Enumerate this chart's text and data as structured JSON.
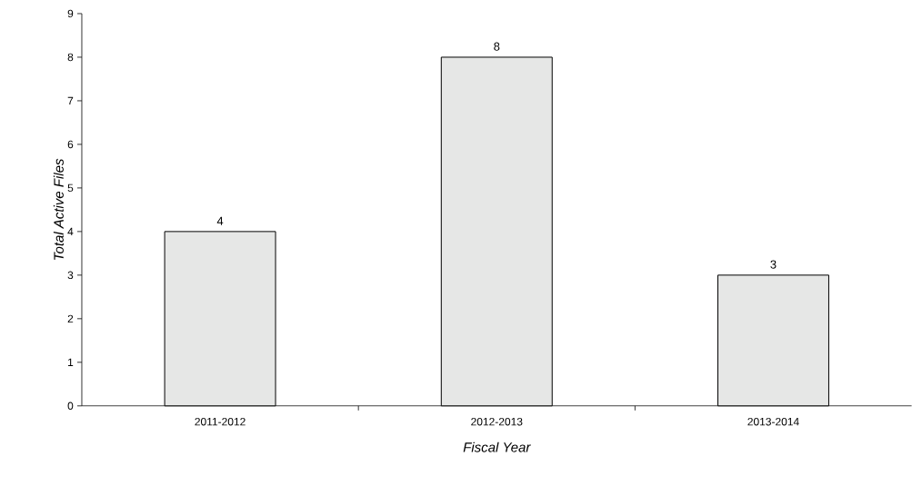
{
  "chart_data": {
    "type": "bar",
    "xlabel": "Fiscal Year",
    "ylabel": "Total Active Files",
    "categories": [
      "2011-2012",
      "2012-2013",
      "2013-2014"
    ],
    "values": [
      4,
      8,
      3
    ],
    "color": "#e6e7e6",
    "ylim": [
      0,
      9
    ],
    "yticks": [
      0,
      1,
      2,
      3,
      4,
      5,
      6,
      7,
      8,
      9
    ],
    "data_labels": true,
    "grid": false
  }
}
